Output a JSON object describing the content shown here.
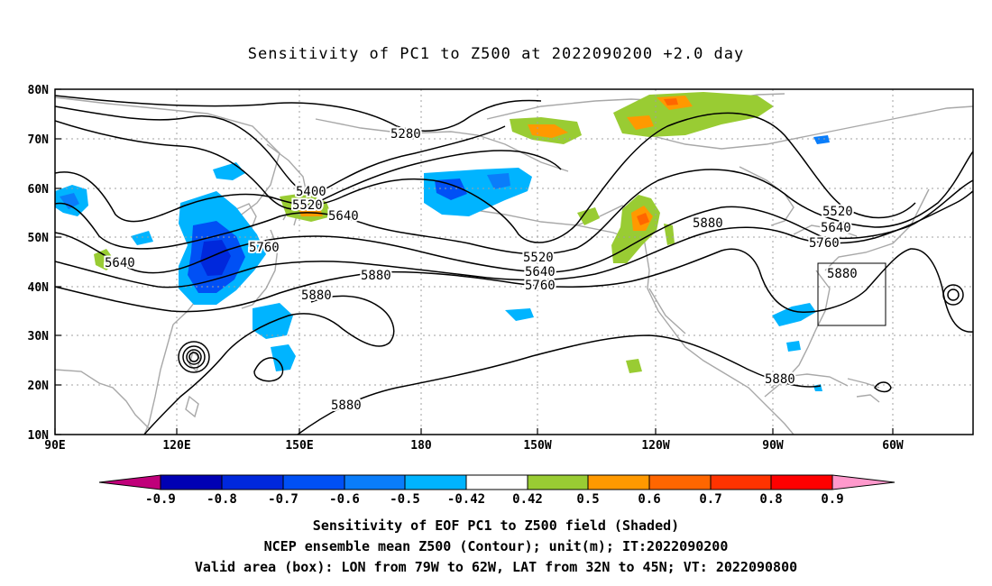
{
  "title": "Sensitivity of PC1 to Z500 at 2022090200 +2.0 day",
  "axes": {
    "lat_labels": [
      "80N",
      "70N",
      "60N",
      "50N",
      "40N",
      "30N",
      "20N",
      "10N"
    ],
    "lon_labels": [
      "90E",
      "120E",
      "150E",
      "180",
      "150W",
      "120W",
      "90W",
      "60W"
    ],
    "grid": "dotted"
  },
  "contour_labels": [
    "5280",
    "5400",
    "5520",
    "5640",
    "5640",
    "5760",
    "5880",
    "5880",
    "5880",
    "5520",
    "5640",
    "5760",
    "5880",
    "5520",
    "5640",
    "5760",
    "5880",
    "5880"
  ],
  "valid_box": {
    "lon_from": "79W",
    "lon_to": "62W",
    "lat_from": "32N",
    "lat_to": "45N"
  },
  "colorbar": {
    "labels": [
      "-0.9",
      "-0.8",
      "-0.7",
      "-0.6",
      "-0.5",
      "-0.42",
      "0.42",
      "0.5",
      "0.6",
      "0.7",
      "0.8",
      "0.9"
    ],
    "colors": [
      "#c0007a",
      "#0000b4",
      "#0028dc",
      "#0050f5",
      "#0a7dfa",
      "#00b4ff",
      "#ffffff",
      "#99cc33",
      "#ff9900",
      "#ff6600",
      "#ff3300",
      "#ff0000",
      "#ff99cc"
    ]
  },
  "captions": {
    "line1": "Sensitivity of EOF PC1 to Z500 field (Shaded)",
    "line2": "NCEP ensemble mean Z500 (Contour); unit(m); IT:2022090200",
    "line3": "Valid area (box): LON from 79W to 62W, LAT from 32N to 45N; VT: 2022090800"
  }
}
